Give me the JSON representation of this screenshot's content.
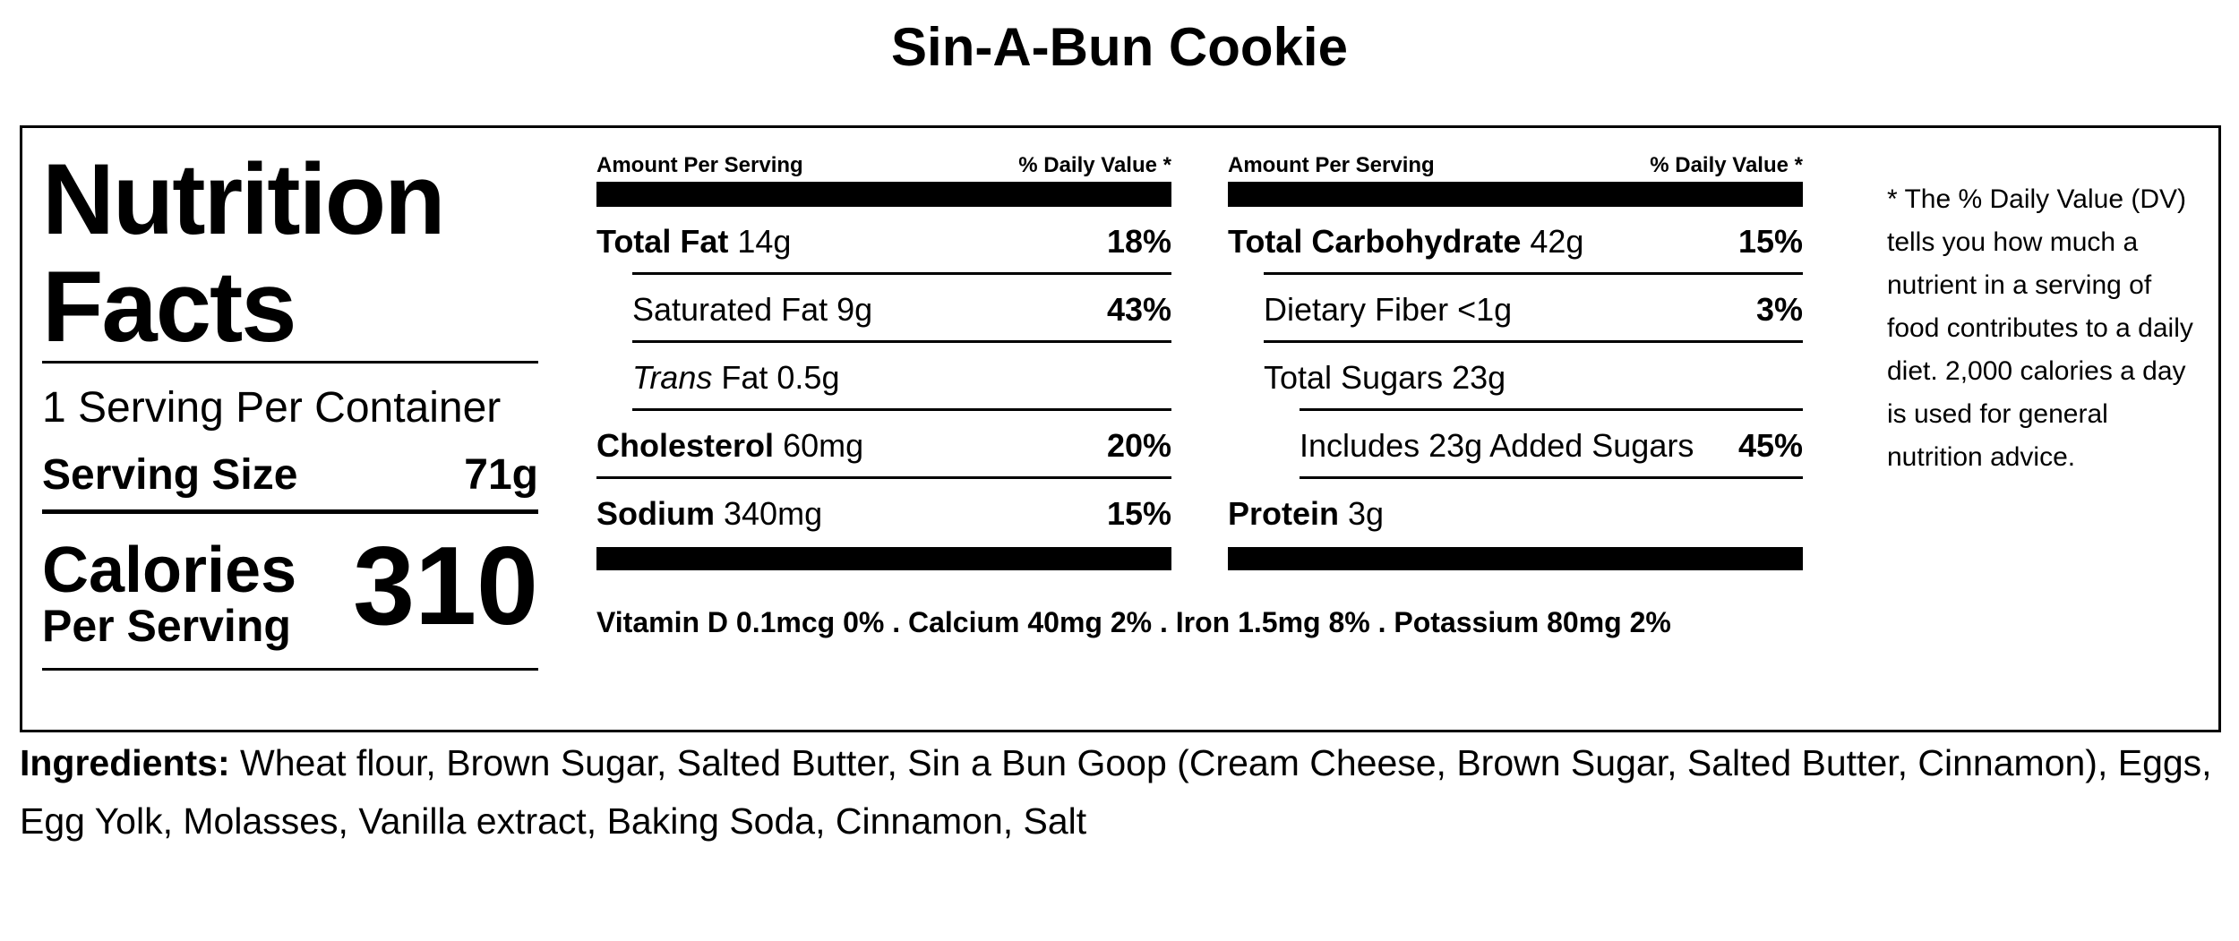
{
  "title": "Sin-A-Bun Cookie",
  "label": {
    "heading_1": "Nutrition",
    "heading_2": "Facts",
    "servings": "1 Serving Per Container",
    "serving_size_label": "Serving Size",
    "serving_size": "71g",
    "calories_label": "Calories",
    "calories_sub": "Per Serving",
    "calories": 310
  },
  "columns": [
    {
      "header": {
        "amount": "Amount Per Serving",
        "dv": "% Daily Value *"
      },
      "rows": [
        {
          "level": 0,
          "name": "Total Fat",
          "amount": "14g",
          "dv": "18%"
        },
        {
          "level": 1,
          "name": "Saturated Fat",
          "amount": "9g",
          "dv": "43%"
        },
        {
          "level": 1,
          "prefix": "Trans",
          "name": "Fat",
          "amount": "0.5g"
        },
        {
          "level": 0,
          "name": "Cholesterol",
          "amount": "60mg",
          "dv": "20%"
        },
        {
          "level": 0,
          "name": "Sodium",
          "amount": "340mg",
          "dv": "15%"
        }
      ]
    },
    {
      "header": {
        "amount": "Amount Per Serving",
        "dv": "% Daily Value *"
      },
      "rows": [
        {
          "level": 0,
          "name": "Total Carbohydrate",
          "amount": "42g",
          "dv": "15%"
        },
        {
          "level": 1,
          "name": "Dietary Fiber",
          "amount": "<1g",
          "dv": "3%"
        },
        {
          "level": 1,
          "name": "Total Sugars",
          "amount": "23g"
        },
        {
          "level": 2,
          "name": "Includes 23g Added Sugars",
          "dv": "45%"
        },
        {
          "level": 0,
          "name": "Protein",
          "amount": "3g"
        }
      ]
    }
  ],
  "vitamins": {
    "separator": ".",
    "items": [
      "Vitamin D 0.1mcg 0%",
      "Calcium 40mg 2%",
      "Iron 1.5mg 8%",
      "Potassium 80mg 2%"
    ]
  },
  "footnote": "* The % Daily Value (DV) tells you how much a nutrient in a serving of food contributes to a daily diet. 2,000 calories a day is used for general nutrition advice.",
  "ingredients": {
    "label": "Ingredients:",
    "text": "Wheat flour, Brown Sugar, Salted Butter, Sin a Bun Goop (Cream Cheese, Brown Sugar, Salted Butter, Cinnamon), Eggs, Egg Yolk, Molasses, Vanilla extract, Baking Soda, Cinnamon, Salt"
  }
}
